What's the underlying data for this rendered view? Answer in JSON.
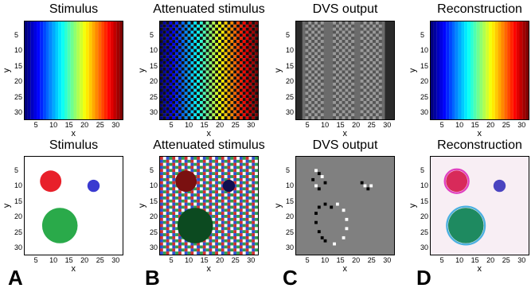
{
  "panels": [
    {
      "id": "A",
      "title_top": "Stimulus",
      "title_bottom": "Stimulus"
    },
    {
      "id": "B",
      "title_top": "Attenuated stimulus",
      "title_bottom": "Attenuated stimulus"
    },
    {
      "id": "C",
      "title_top": "DVS output",
      "title_bottom": "DVS output"
    },
    {
      "id": "D",
      "title_top": "Reconstruction",
      "title_bottom": "Reconstruction"
    }
  ],
  "axes": {
    "xlabel": "x",
    "ylabel": "y",
    "x_ticks": [
      "5",
      "10",
      "15",
      "20",
      "25",
      "30"
    ],
    "y_ticks": [
      "5",
      "10",
      "15",
      "20",
      "25",
      "30"
    ],
    "x_range": [
      1,
      32
    ],
    "y_range": [
      1,
      32
    ]
  },
  "letters": [
    "A",
    "B",
    "C",
    "D"
  ],
  "colors": {
    "red_blob": "#e8202a",
    "blue_blob": "#3a3ad0",
    "green_blob": "#2aaa4a",
    "dvs_gray": "#808080",
    "background": "#ffffff"
  }
}
